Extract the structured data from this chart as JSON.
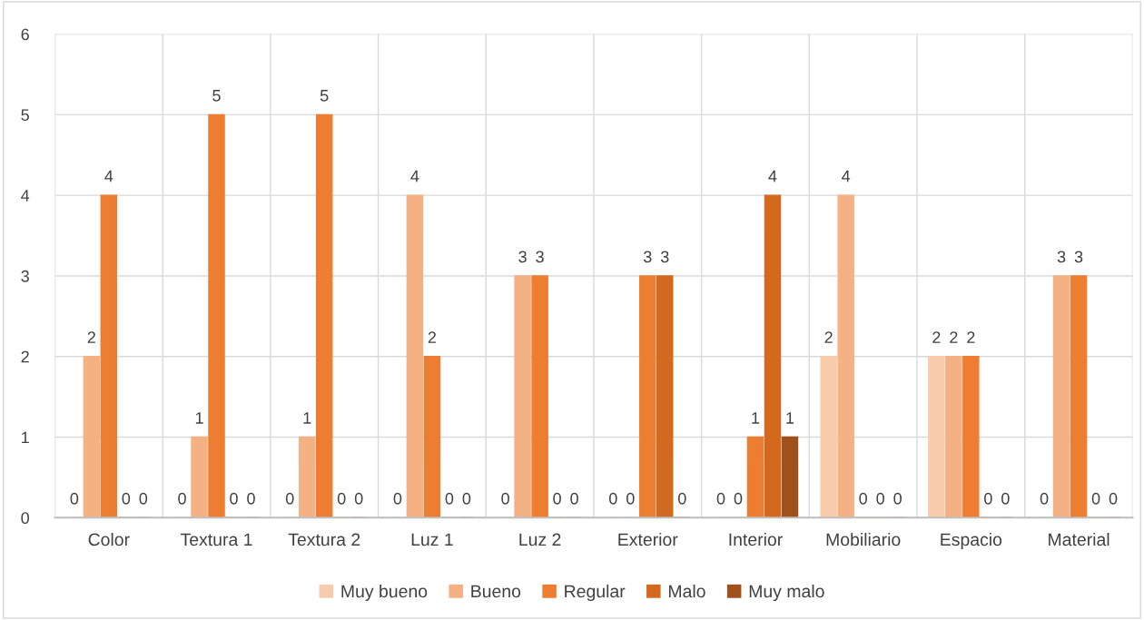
{
  "chart_data": {
    "type": "bar",
    "categories": [
      "Color",
      "Textura 1",
      "Textura 2",
      "Luz 1",
      "Luz 2",
      "Exterior",
      "Interior",
      "Mobiliario",
      "Espacio",
      "Material"
    ],
    "series": [
      {
        "name": "Muy bueno",
        "color": "#f8cbad",
        "values": [
          0,
          0,
          0,
          0,
          0,
          0,
          0,
          2,
          2,
          0
        ]
      },
      {
        "name": "Bueno",
        "color": "#f4b183",
        "values": [
          2,
          1,
          1,
          4,
          3,
          0,
          0,
          4,
          2,
          3
        ]
      },
      {
        "name": "Regular",
        "color": "#ed7d31",
        "values": [
          4,
          5,
          5,
          2,
          3,
          3,
          1,
          0,
          2,
          3
        ]
      },
      {
        "name": "Malo",
        "color": "#d2691e",
        "values": [
          0,
          0,
          0,
          0,
          0,
          3,
          4,
          0,
          0,
          0
        ]
      },
      {
        "name": "Muy malo",
        "color": "#a0501a",
        "values": [
          0,
          0,
          0,
          0,
          0,
          0,
          1,
          0,
          0,
          0
        ]
      }
    ],
    "ylim": [
      0,
      6
    ],
    "yticks": [
      0,
      1,
      2,
      3,
      4,
      5,
      6
    ],
    "grid": true,
    "legend": "bottom",
    "data_labels": true
  }
}
